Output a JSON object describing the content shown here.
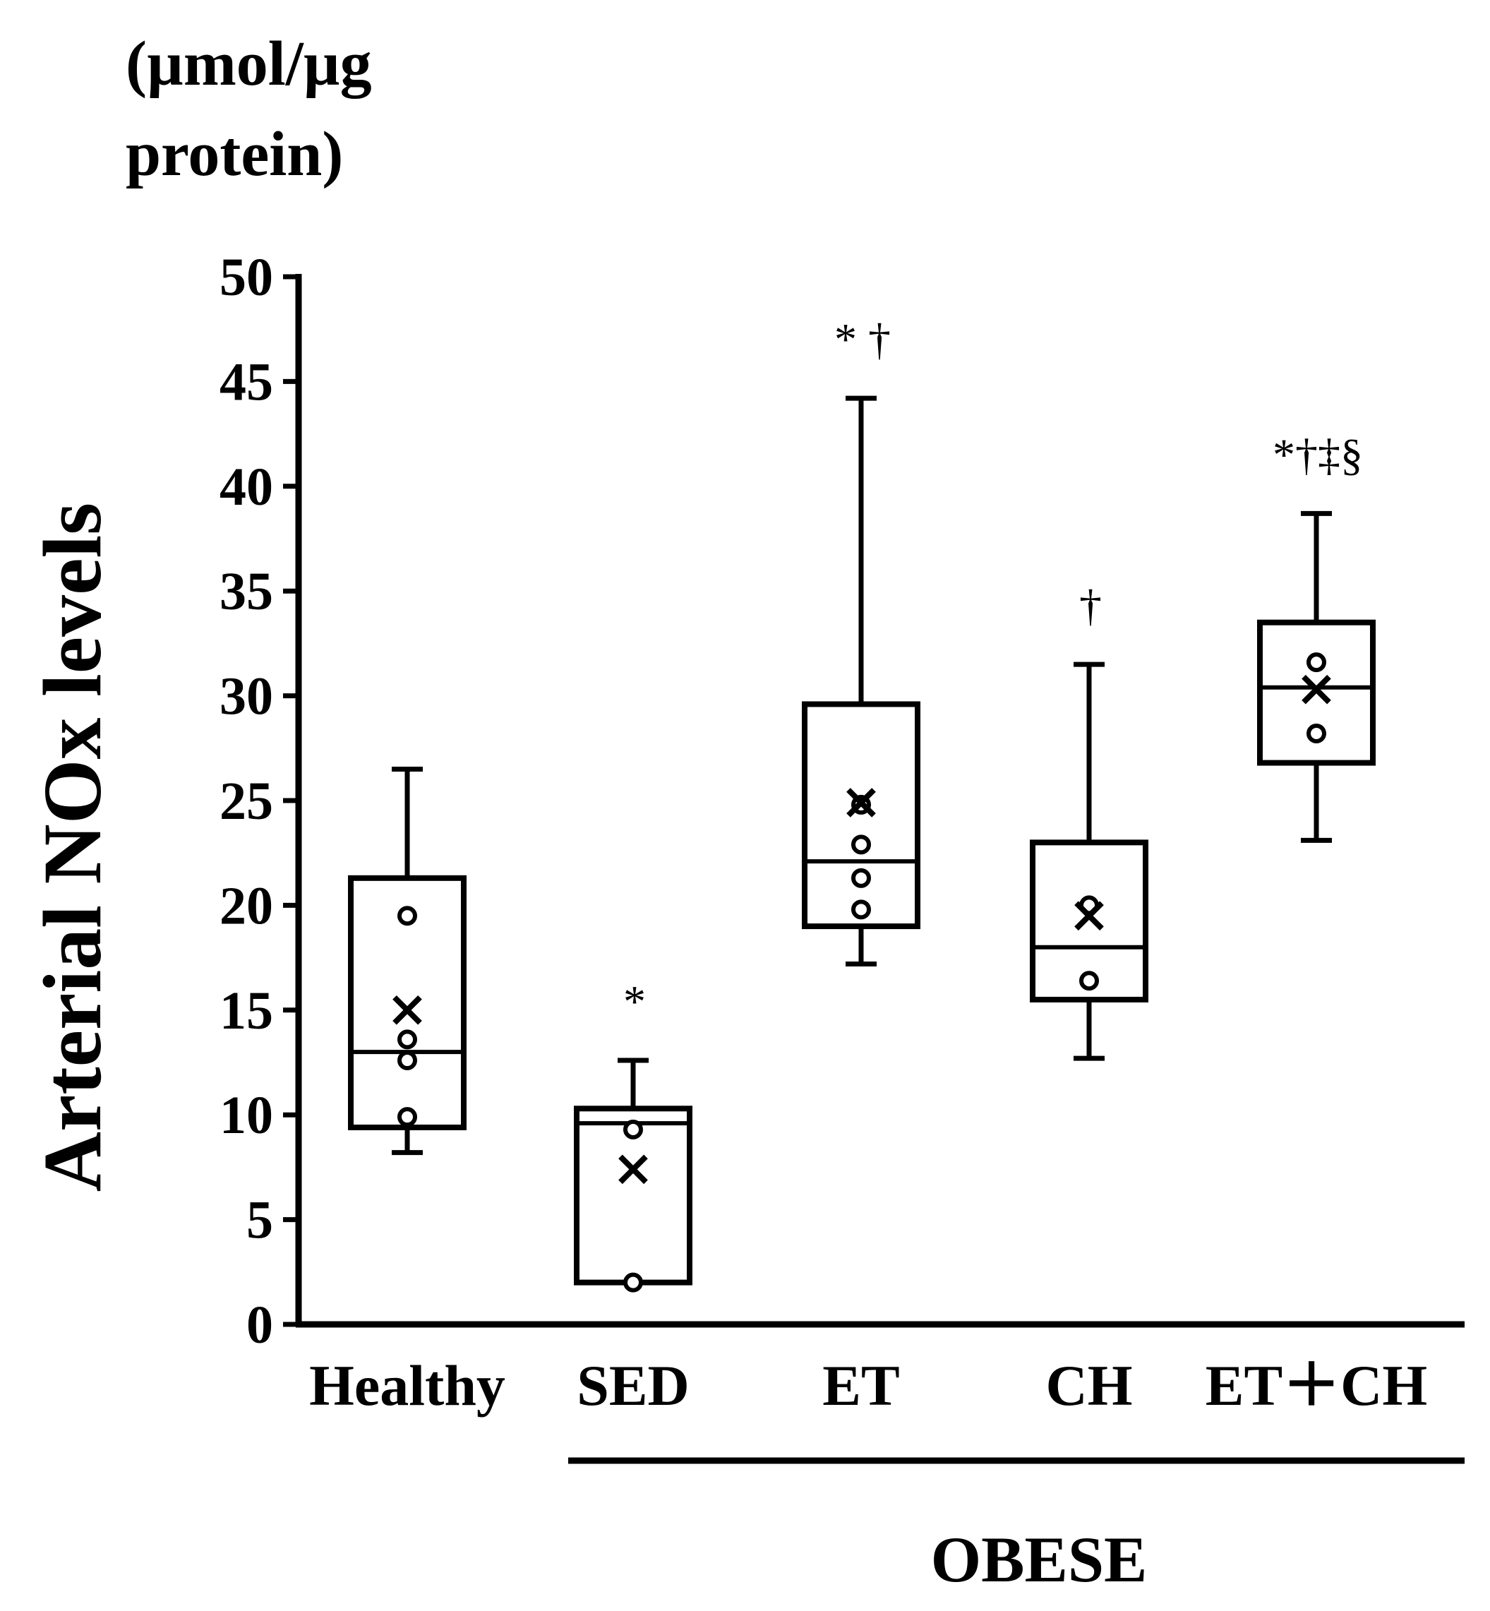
{
  "chart_data": {
    "type": "boxplot",
    "ylabel": "Arterial NOx levels",
    "ylabel_unit_line1": "(µmol/µg",
    "ylabel_unit_line2": "protein)",
    "ylim": [
      0,
      50
    ],
    "yticks": [
      0,
      5,
      10,
      15,
      20,
      25,
      30,
      35,
      40,
      45,
      50
    ],
    "group_label": "OBESE",
    "categories": [
      "Healthy",
      "SED",
      "ET",
      "CH",
      "ET＋CH"
    ],
    "boxes": [
      {
        "name": "Healthy",
        "min": 8.2,
        "q1": 9.4,
        "median": 13.0,
        "q3": 21.3,
        "max": 26.5,
        "mean": 15.0,
        "points": [
          19.5,
          13.6,
          12.6,
          9.9
        ],
        "significance": ""
      },
      {
        "name": "SED",
        "min": 2.0,
        "q1": 2.0,
        "median": 9.6,
        "q3": 10.3,
        "max": 12.6,
        "mean": 7.4,
        "points": [
          9.3,
          2.0
        ],
        "significance": "*"
      },
      {
        "name": "ET",
        "min": 17.2,
        "q1": 19.0,
        "median": 22.1,
        "q3": 29.6,
        "max": 44.2,
        "mean": 24.9,
        "points": [
          24.8,
          22.9,
          21.3,
          19.8
        ],
        "significance": "* †"
      },
      {
        "name": "CH",
        "min": 12.7,
        "q1": 15.5,
        "median": 18.0,
        "q3": 23.0,
        "max": 31.5,
        "mean": 19.5,
        "points": [
          20.0,
          16.4
        ],
        "significance": "†"
      },
      {
        "name": "ET＋CH",
        "min": 23.1,
        "q1": 26.8,
        "median": 30.4,
        "q3": 33.5,
        "max": 38.7,
        "mean": 30.3,
        "points": [
          31.6,
          28.2
        ],
        "significance": "*†‡§"
      }
    ]
  }
}
